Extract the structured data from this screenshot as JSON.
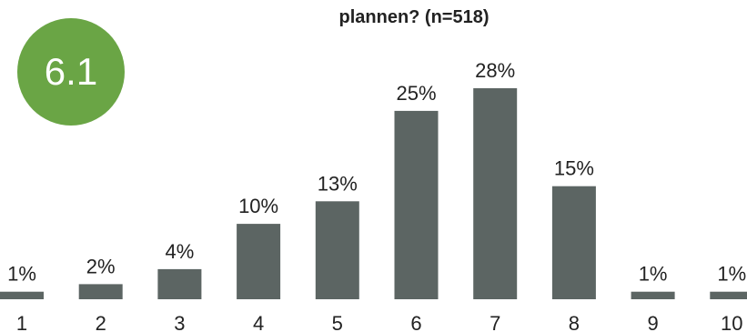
{
  "title": "plannen? (n=518)",
  "score": {
    "value": "6.1",
    "color": "#6aa545"
  },
  "bar_color": "#5c6563",
  "chart_data": {
    "type": "bar",
    "title": "plannen? (n=518)",
    "xlabel": "",
    "ylabel": "",
    "categories": [
      "1",
      "2",
      "3",
      "4",
      "5",
      "6",
      "7",
      "8",
      "9",
      "10"
    ],
    "values": [
      1,
      2,
      4,
      10,
      13,
      25,
      28,
      15,
      1,
      1
    ],
    "data_labels": [
      "1%",
      "2%",
      "4%",
      "10%",
      "13%",
      "25%",
      "28%",
      "15%",
      "1%",
      "1%"
    ],
    "ylim": [
      0,
      28
    ],
    "grid": false
  }
}
